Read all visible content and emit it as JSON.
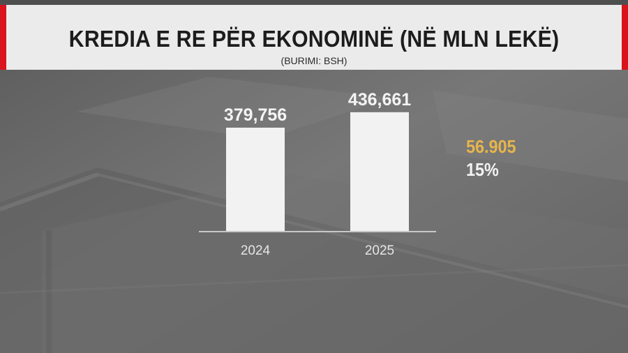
{
  "header": {
    "title": "KREDIA E RE PËR EKONOMINË (NË MLN LEKË)",
    "subtitle": "(BURIMI: BSH)"
  },
  "summary": {
    "difference": "56.905",
    "percent": "15%"
  },
  "colors": {
    "accent_red": "#d9141c",
    "amount_gold": "#e7b54b",
    "bar_fill": "#f2f2f2"
  },
  "chart_data": {
    "type": "bar",
    "categories": [
      "2024",
      "2025"
    ],
    "values": [
      379756,
      436661
    ],
    "data_labels": [
      "379,756",
      "436,661"
    ],
    "title": "",
    "xlabel": "",
    "ylabel": "",
    "grid": false
  }
}
